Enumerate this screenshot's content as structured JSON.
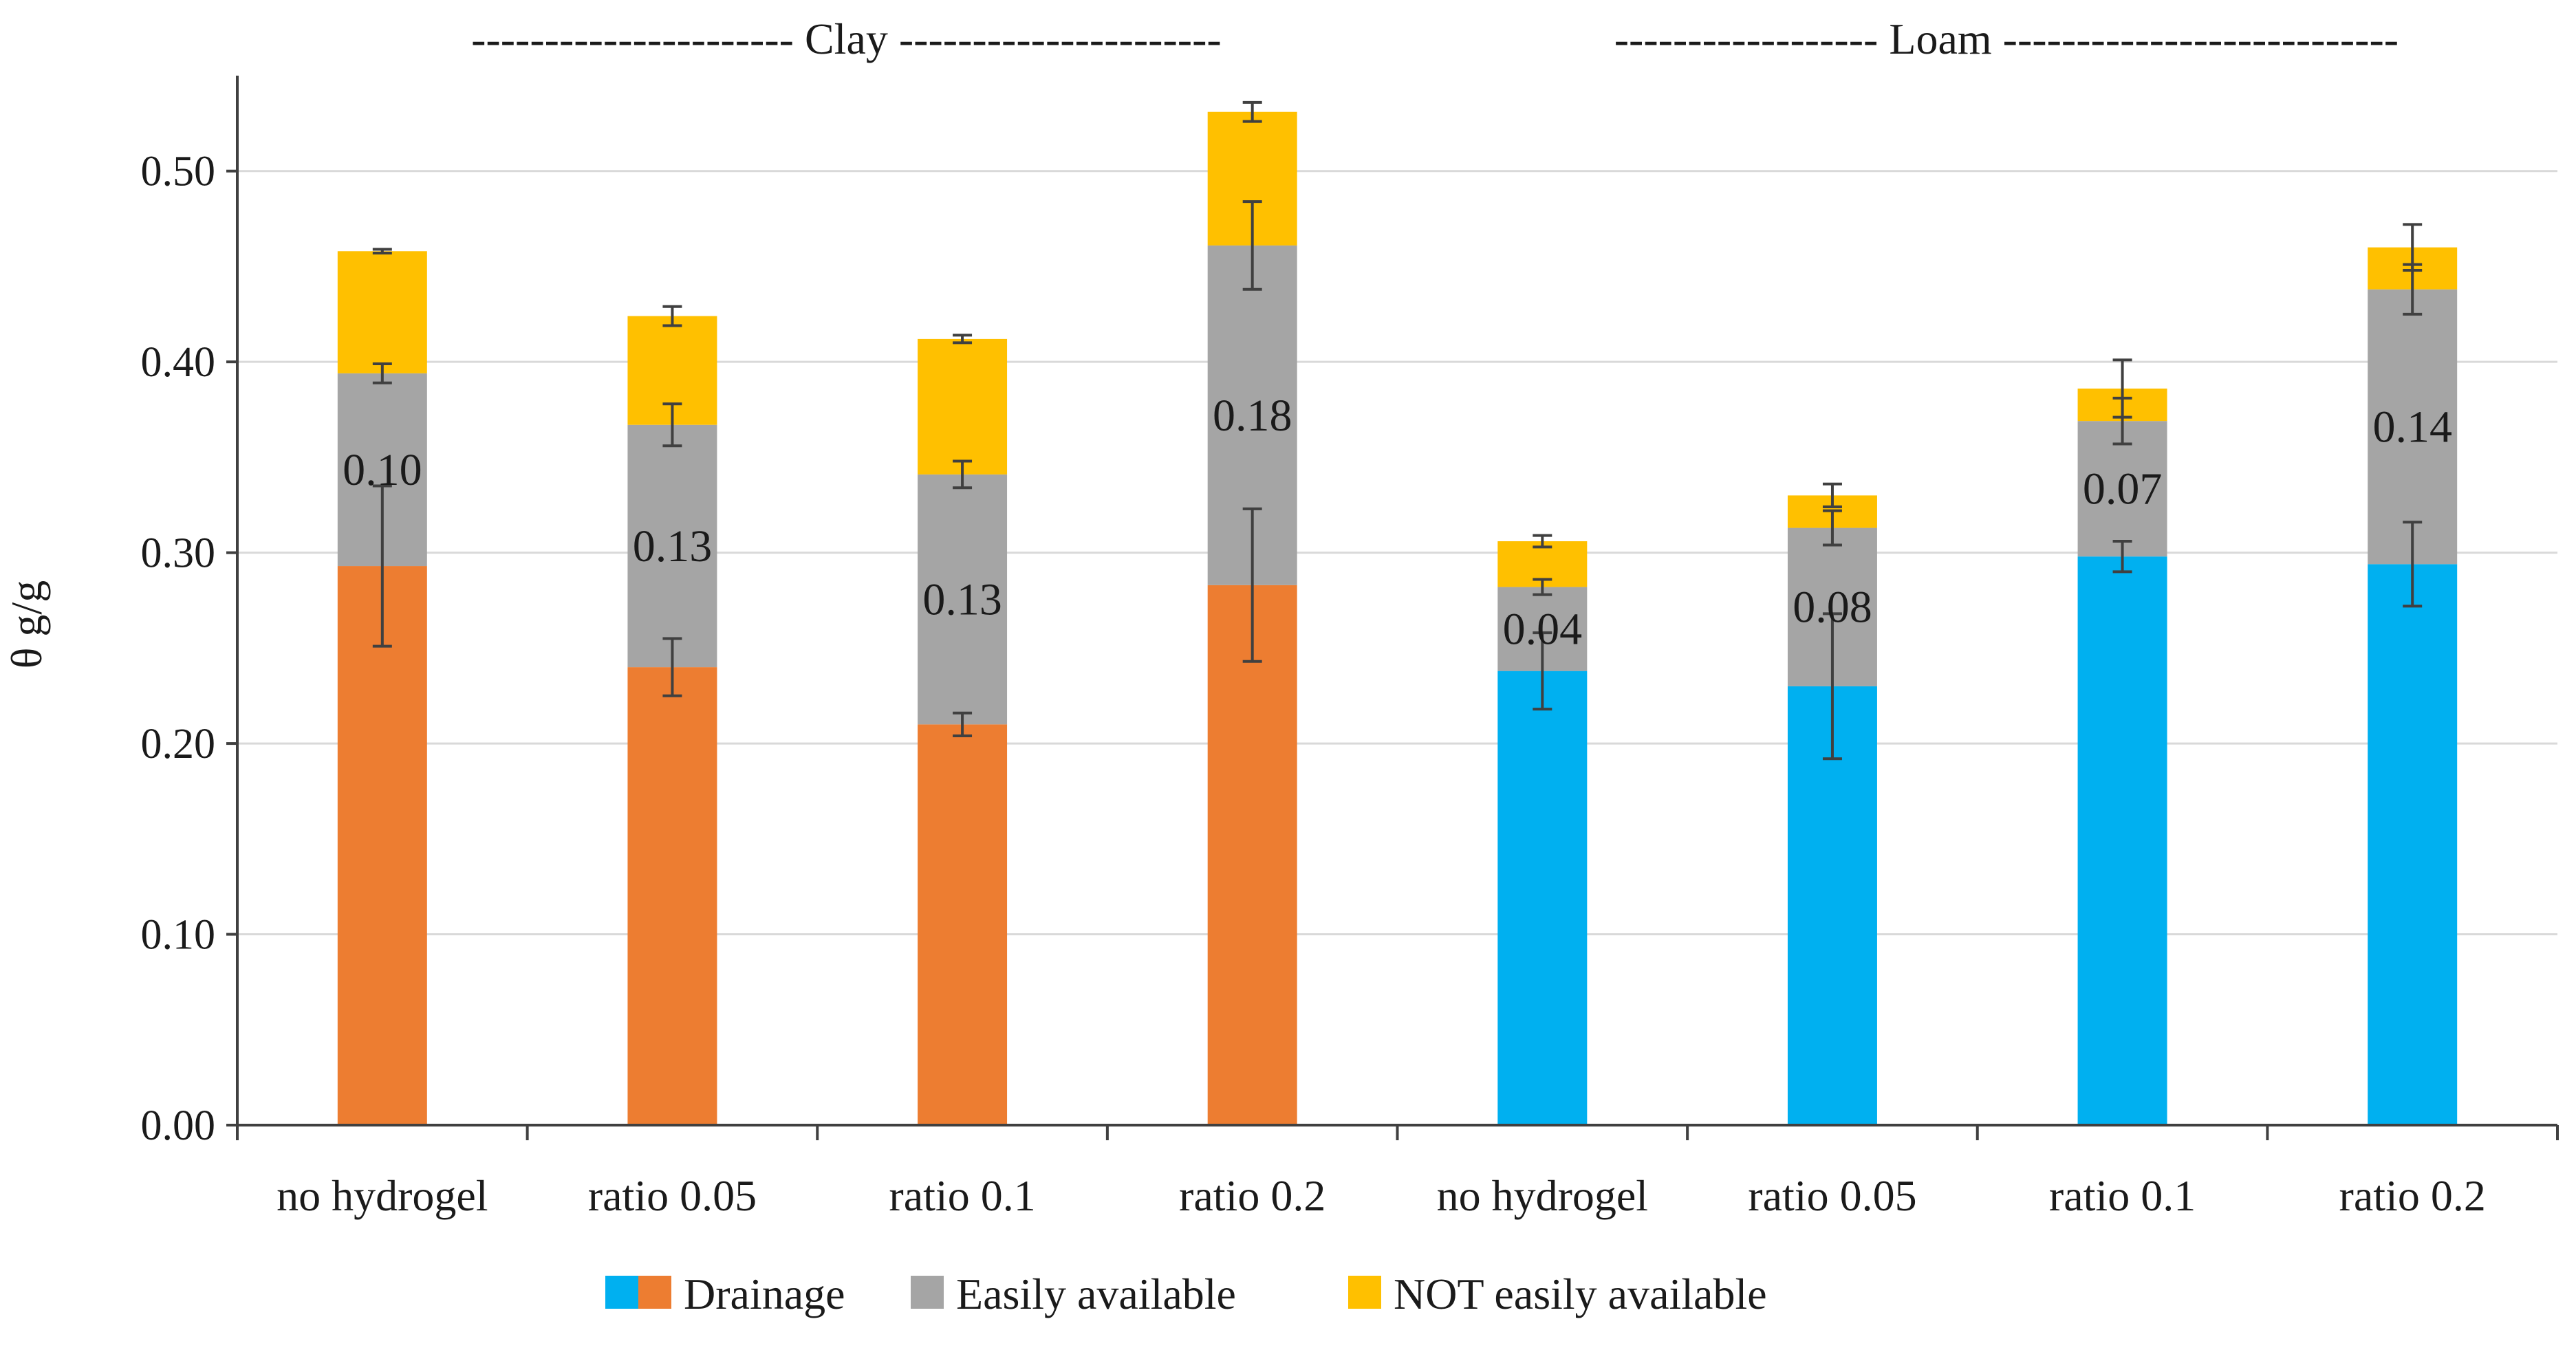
{
  "chart_data": {
    "type": "bar",
    "stacked": true,
    "ylabel": "θ g/g",
    "ylim": [
      0,
      0.55
    ],
    "yticks": [
      0.0,
      0.1,
      0.2,
      0.3,
      0.4,
      0.5
    ],
    "ytick_labels": [
      "0.00",
      "0.10",
      "0.20",
      "0.30",
      "0.40",
      "0.50"
    ],
    "grid": true,
    "legend_position": "bottom",
    "groups": [
      {
        "label": "Clay",
        "dashes_left": "----------------------",
        "dashes_right": "----------------------",
        "categories": [
          0,
          1,
          2,
          3
        ]
      },
      {
        "label": "Loam",
        "dashes_left": "------------------",
        "dashes_right": "---------------------------",
        "categories": [
          4,
          5,
          6,
          7
        ]
      }
    ],
    "categories": [
      "no hydrogel",
      "ratio 0.05",
      "ratio 0.1",
      "ratio 0.2",
      "no hydrogel",
      "ratio 0.05",
      "ratio 0.1",
      "ratio 0.2"
    ],
    "series": [
      {
        "name": "Drainage",
        "colors": [
          "#ED7D31",
          "#ED7D31",
          "#ED7D31",
          "#ED7D31",
          "#00B0F0",
          "#00B0F0",
          "#00B0F0",
          "#00B0F0"
        ],
        "values": [
          0.293,
          0.24,
          0.21,
          0.283,
          0.238,
          0.23,
          0.298,
          0.294
        ],
        "errors": [
          0.042,
          0.015,
          0.006,
          0.04,
          0.02,
          0.038,
          0.008,
          0.022
        ]
      },
      {
        "name": "Easily available",
        "color": "#A5A5A5",
        "values": [
          0.101,
          0.127,
          0.131,
          0.178,
          0.044,
          0.083,
          0.071,
          0.144
        ],
        "errors": [
          0.005,
          0.011,
          0.007,
          0.023,
          0.004,
          0.009,
          0.012,
          0.013
        ],
        "data_labels": [
          "0.10",
          "0.13",
          "0.13",
          "0.18",
          "0.04",
          "0.08",
          "0.07",
          "0.14"
        ]
      },
      {
        "name": "NOT easily available",
        "color": "#FFC000",
        "values": [
          0.064,
          0.057,
          0.071,
          0.07,
          0.024,
          0.017,
          0.017,
          0.022
        ],
        "errors": [
          0.001,
          0.005,
          0.002,
          0.005,
          0.003,
          0.006,
          0.015,
          0.012
        ]
      }
    ],
    "legend": [
      {
        "label": "Drainage",
        "colors": [
          "#00B0F0",
          "#ED7D31"
        ]
      },
      {
        "label": "Easily available",
        "colors": [
          "#A5A5A5"
        ]
      },
      {
        "label": "NOT easily available",
        "colors": [
          "#FFC000"
        ]
      }
    ]
  }
}
